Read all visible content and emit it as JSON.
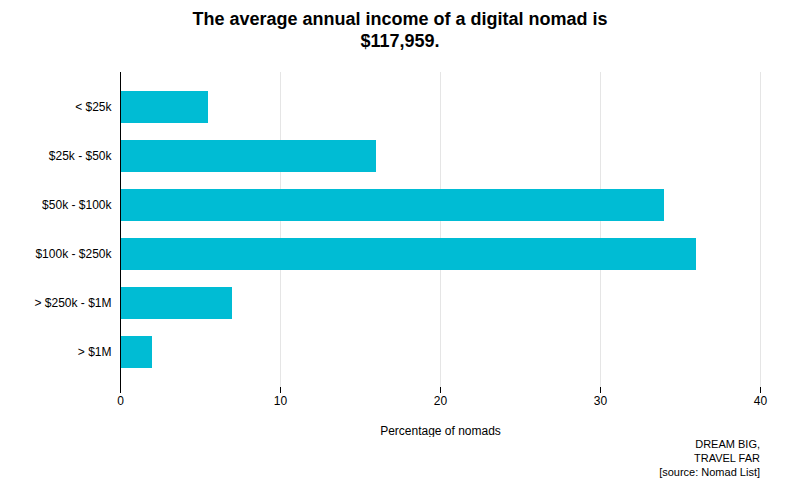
{
  "chart_data": {
    "type": "bar",
    "title": "The average annual income of a digital nomad is\n$117,959.",
    "categories": [
      "< $25k",
      "$25k - $50k",
      "$50k - $100k",
      "$100k - $250k",
      "> $250k - $1M",
      "> $1M"
    ],
    "values": [
      5.5,
      16,
      34,
      36,
      7,
      2
    ],
    "color": "#00BCD4",
    "orientation": "horizontal",
    "xlabel": "Percentage of nomads",
    "xlim": [
      0,
      40
    ],
    "xticks": [
      0,
      10,
      20,
      30,
      40
    ],
    "grid": true,
    "annotations": [
      "DREAM BIG,",
      "TRAVEL FAR",
      "[source: Nomad List]"
    ]
  }
}
